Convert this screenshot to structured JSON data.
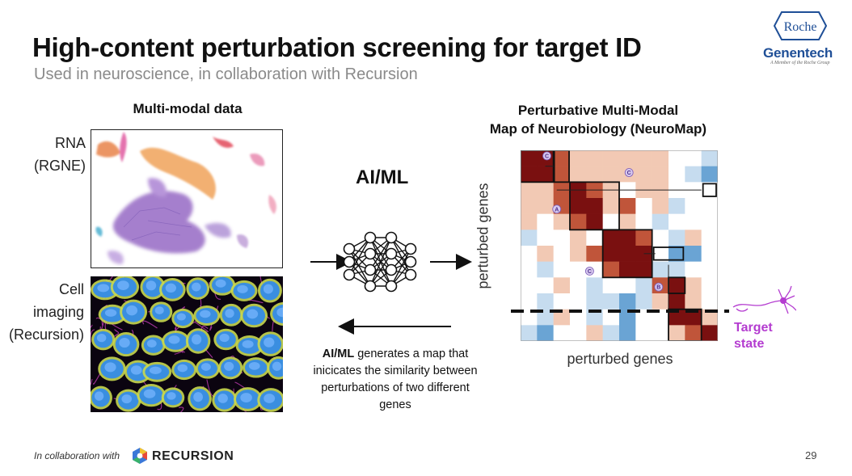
{
  "slide": {
    "title": "High-content perturbation screening for target ID",
    "subtitle": "Used in neuroscience, in collaboration with Recursion",
    "page_number": "29"
  },
  "logos": {
    "roche": "Roche",
    "genentech": "Genentech",
    "genentech_tagline": "A Member of the Roche Group"
  },
  "left_panel": {
    "header": "Multi-modal data",
    "rna_label_line1": "RNA",
    "rna_label_line2": "(RGNE)",
    "cell_label_line1": "Cell",
    "cell_label_line2": "imaging",
    "cell_label_line3": "(Recursion)"
  },
  "middle": {
    "aiml_title": "AI/ML",
    "caption_bold": "AI/ML",
    "caption_rest": " generates a map that inicicates the similarity between perturbations of two different genes"
  },
  "right_panel": {
    "header_line1": "Perturbative Multi-Modal",
    "header_line2": "Map of Neurobiology (NeuroMap)",
    "ylabel": "perturbed genes",
    "xlabel": "perturbed genes",
    "target_line1": "Target",
    "target_line2": "state",
    "marker_labels": [
      "C",
      "C",
      "A",
      "C",
      "B"
    ]
  },
  "footer": {
    "prefix": "In collaboration with",
    "brand": "RECURSION"
  },
  "colors": {
    "title": "#111111",
    "subtitle": "#8a8a8a",
    "genentech_blue": "#1f4f97",
    "target_purple": "#b43cd0",
    "heat_red": "#7a1010",
    "heat_blue": "#4a8ec4"
  },
  "icons": {
    "nn": "neural-network-icon",
    "neuron": "neuron-icon",
    "recursion": "recursion-hexagon-icon"
  }
}
